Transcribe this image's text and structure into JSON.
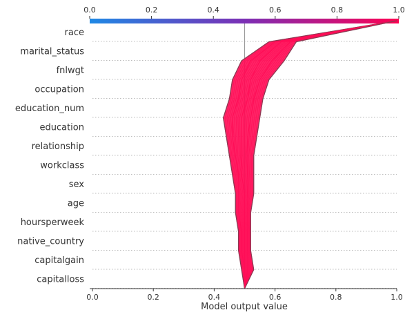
{
  "chart_data": {
    "type": "line",
    "subtype": "decision plot",
    "xlabel": "Model output value",
    "xlim": [
      0.0,
      1.0
    ],
    "x_ticks": [
      "0.0",
      "0.2",
      "0.4",
      "0.6",
      "0.8",
      "1.0"
    ],
    "colorbar_ticks": [
      "0.0",
      "0.2",
      "0.4",
      "0.6",
      "0.8",
      "1.0"
    ],
    "colorbar_colors": [
      "#1e88e5",
      "#7b2fb5",
      "#ff0052"
    ],
    "base_value": 0.5,
    "features": [
      "race",
      "marital_status",
      "fnlwgt",
      "occupation",
      "education_num",
      "education",
      "relationship",
      "workclass",
      "sex",
      "age",
      "hoursperweek",
      "native_country",
      "capitalgain",
      "capitalloss"
    ],
    "line_color": "#ff0d57",
    "edge_color": "#8b3a52",
    "grid": "dotted horizontal",
    "series_note_order": "values listed from bottom (base) to top (after race)",
    "series": [
      {
        "values": [
          0.5,
          0.49,
          0.48,
          0.48,
          0.47,
          0.47,
          0.46,
          0.45,
          0.44,
          0.43,
          0.45,
          0.46,
          0.49,
          0.58,
          1.0
        ]
      },
      {
        "values": [
          0.5,
          0.5,
          0.49,
          0.49,
          0.48,
          0.48,
          0.48,
          0.47,
          0.46,
          0.46,
          0.48,
          0.49,
          0.52,
          0.6,
          1.0
        ]
      },
      {
        "values": [
          0.5,
          0.5,
          0.5,
          0.5,
          0.5,
          0.5,
          0.49,
          0.49,
          0.49,
          0.49,
          0.51,
          0.52,
          0.55,
          0.62,
          1.0
        ]
      },
      {
        "values": [
          0.5,
          0.51,
          0.51,
          0.51,
          0.51,
          0.51,
          0.51,
          0.51,
          0.51,
          0.52,
          0.53,
          0.55,
          0.59,
          0.65,
          1.0
        ]
      },
      {
        "values": [
          0.5,
          0.53,
          0.52,
          0.52,
          0.52,
          0.53,
          0.53,
          0.53,
          0.54,
          0.55,
          0.56,
          0.58,
          0.63,
          0.67,
          1.0
        ]
      }
    ]
  }
}
